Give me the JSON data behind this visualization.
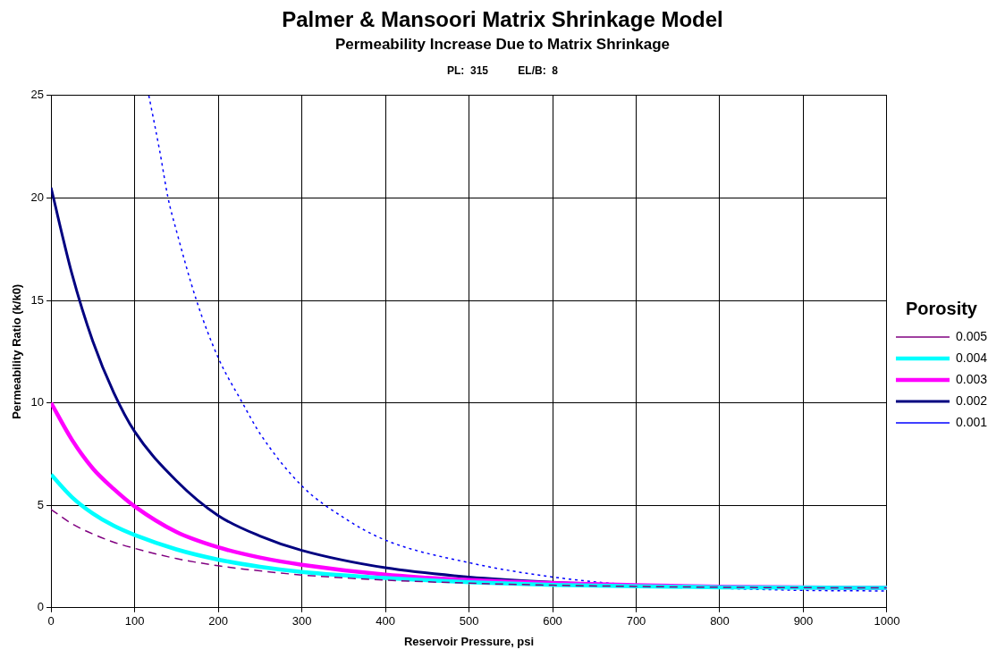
{
  "chart_data": {
    "type": "line",
    "title": "Palmer & Mansoori Matrix Shrinkage Model",
    "subtitle": "Permeability Increase Due to Matrix Shrinkage",
    "annotations": [
      "PL:  315          EL/B:  8"
    ],
    "xlabel": "Reservoir Pressure, psi",
    "ylabel": "Permeability Ratio (k/k0)",
    "legend_title": "Porosity",
    "x": [
      0,
      25,
      50,
      75,
      100,
      150,
      200,
      250,
      300,
      400,
      500,
      600,
      700,
      800,
      900,
      1000
    ],
    "xlim": [
      0,
      1000
    ],
    "xticks": [
      0,
      100,
      200,
      300,
      400,
      500,
      600,
      700,
      800,
      900,
      1000
    ],
    "ylim": [
      0,
      25
    ],
    "yticks": [
      0,
      5,
      10,
      15,
      20,
      25
    ],
    "grid": true,
    "legend": "right",
    "marker": "none",
    "series": [
      {
        "name": "0.001",
        "color": "#0000ff",
        "line_style": "dotted",
        "x": [
          117,
          130,
          140,
          150,
          174,
          200,
          229,
          250,
          300,
          350,
          400,
          500,
          600,
          700,
          800,
          900,
          1000
        ],
        "values": [
          25,
          22.3,
          20,
          18.4,
          15,
          12.2,
          10,
          8.5,
          5.95,
          4.4,
          3.3,
          2.2,
          1.5,
          1.1,
          0.95,
          0.85,
          0.82
        ]
      },
      {
        "name": "0.002",
        "color": "#000080",
        "line_style": "solid",
        "values": [
          20.5,
          16.3,
          13,
          10.5,
          8.6,
          6.2,
          4.5,
          3.5,
          2.8,
          1.95,
          1.5,
          1.25,
          1.1,
          1.02,
          0.97,
          0.95
        ]
      },
      {
        "name": "0.003",
        "color": "#ff00ff",
        "line_style": "solid",
        "values": [
          10,
          8.2,
          6.8,
          5.8,
          4.95,
          3.7,
          2.95,
          2.45,
          2.1,
          1.62,
          1.35,
          1.2,
          1.1,
          1.03,
          0.99,
          0.97
        ]
      },
      {
        "name": "0.004",
        "color": "#00ffff",
        "line_style": "solid",
        "values": [
          6.5,
          5.4,
          4.6,
          4.0,
          3.55,
          2.85,
          2.35,
          2.0,
          1.75,
          1.45,
          1.25,
          1.12,
          1.05,
          1.0,
          0.98,
          0.97
        ]
      },
      {
        "name": "0.005",
        "color": "#800080",
        "line_style": "dashed",
        "values": [
          4.8,
          4.1,
          3.6,
          3.2,
          2.9,
          2.4,
          2.05,
          1.8,
          1.6,
          1.35,
          1.2,
          1.1,
          1.04,
          1.0,
          0.98,
          0.97
        ]
      }
    ]
  }
}
